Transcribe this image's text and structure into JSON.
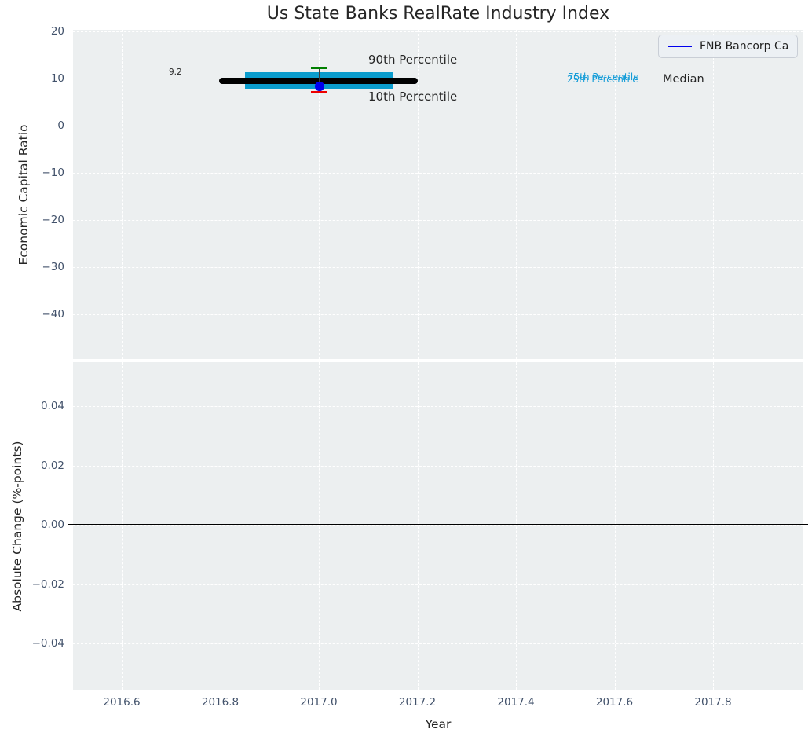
{
  "title": "Us State Banks RealRate Industry Index",
  "legend": {
    "label": "FNB Bancorp Ca"
  },
  "axes": {
    "top": {
      "ylabel": "Economic Capital Ratio",
      "tick_labels": [
        "20",
        "10",
        "0",
        "−10",
        "−20",
        "−30",
        "−40"
      ]
    },
    "bottom": {
      "ylabel": "Absolute Change (%-points)",
      "tick_labels": [
        "0.04",
        "0.02",
        "0.00",
        "−0.02",
        "−0.04"
      ]
    },
    "x": {
      "label": "Year",
      "tick_labels": [
        "2016.6",
        "2016.8",
        "2017.0",
        "2017.2",
        "2017.4",
        "2017.6",
        "2017.8"
      ]
    }
  },
  "annotations": {
    "median_value": "9.2",
    "p90": "90th Percentile",
    "p10": "10th Percentile",
    "p75": "75th Percentile",
    "p25": "25th Percentile",
    "median": "Median"
  },
  "colors": {
    "box": "#0A9CCD",
    "median_line": "#000000",
    "p90_cap": "#008000",
    "p10_cap": "#EE0000",
    "company_marker": "#0000EE",
    "legend_line": "#0000EE",
    "percentile_text": "#169DD8",
    "plot_background": "#ECEFF0",
    "grid": "#FFFFFF",
    "tick_label": "#42526B",
    "text": "#262626"
  },
  "chart_data": [
    {
      "type": "box",
      "title": "Us State Banks RealRate Industry Index",
      "xlabel": "Year",
      "ylabel": "Economic Capital Ratio",
      "xlim": [
        2016.5,
        2017.98
      ],
      "ylim": [
        -49.5,
        20.3
      ],
      "xticks": [
        2016.6,
        2016.8,
        2017.0,
        2017.2,
        2017.4,
        2017.6,
        2017.8
      ],
      "yticks": [
        20,
        10,
        0,
        -10,
        -20,
        -30,
        -40
      ],
      "grid": {
        "visible": true,
        "style": "dashed",
        "color": "#FFFFFF"
      },
      "legend_position": "upper right",
      "industry_percentiles": {
        "x_center": 2017.0,
        "median": {
          "value": 9.2,
          "x_span": [
            2016.8,
            2017.2
          ],
          "color": "#000000",
          "label": "Median"
        },
        "p25": {
          "value": 7.5,
          "label": "25th Percentile"
        },
        "p75": {
          "value": 11.0,
          "label": "75th Percentile"
        },
        "box_x_span": [
          2016.85,
          2017.15
        ],
        "box_color": "#0A9CCD",
        "p90": {
          "value": 12.0,
          "cap_color": "#008000",
          "label": "90th Percentile"
        },
        "p10": {
          "value": 6.8,
          "cap_color": "#EE0000",
          "label": "10th Percentile"
        }
      },
      "series": [
        {
          "name": "FNB Bancorp Ca",
          "type": "scatter",
          "x": [
            2017.0
          ],
          "y": [
            8.2
          ],
          "color": "#0000EE",
          "marker": "circle"
        }
      ]
    },
    {
      "type": "line",
      "xlabel": "Year",
      "ylabel": "Absolute Change (%-points)",
      "xlim": [
        2016.5,
        2017.98
      ],
      "ylim": [
        -0.0556,
        0.0548
      ],
      "xticks": [
        2016.6,
        2016.8,
        2017.0,
        2017.2,
        2017.4,
        2017.6,
        2017.8
      ],
      "yticks": [
        0.04,
        0.02,
        0.0,
        -0.02,
        -0.04
      ],
      "grid": {
        "visible": true,
        "style": "dashed",
        "color": "#FFFFFF"
      },
      "zero_line": {
        "y": 0.0,
        "color": "#000000"
      },
      "series": []
    }
  ]
}
